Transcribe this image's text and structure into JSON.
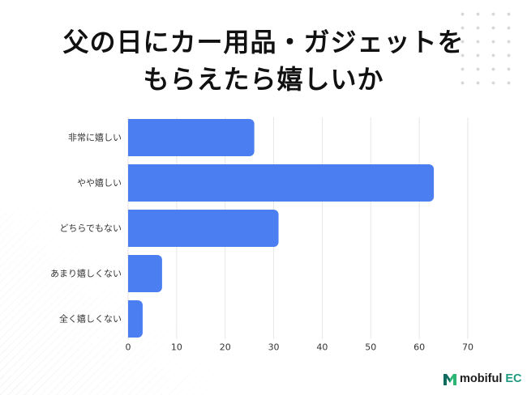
{
  "chart_data": {
    "type": "bar",
    "orientation": "horizontal",
    "title": [
      "父の日にカー用品・ガジェットを",
      "もらえたら嬉しいか"
    ],
    "categories": [
      "非常に嬉しい",
      "やや嬉しい",
      "どちらでもない",
      "あまり嬉しくない",
      "全く嬉しくない"
    ],
    "values": [
      26,
      63,
      31,
      7,
      3
    ],
    "xlim": [
      0,
      70
    ],
    "x_ticks": [
      0,
      10,
      20,
      30,
      40,
      50,
      60,
      70
    ],
    "grid": true,
    "legend": "none",
    "bar_color": "#4a7ef1"
  },
  "brand": {
    "icon": "mobiful-logo-icon",
    "name": "mobiful",
    "suffix": "EC",
    "name_color": "#1e1e1e",
    "accent_color": "#1d9a80"
  }
}
